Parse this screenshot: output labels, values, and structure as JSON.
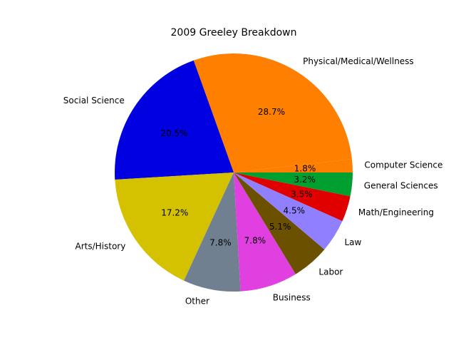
{
  "chart_data": {
    "type": "pie",
    "title": "2009 Greeley Breakdown",
    "start_angle_deg": 0,
    "direction": "counterclockwise",
    "slices": [
      {
        "label": "Computer Science",
        "value": 1.8,
        "pct_label": "1.8%",
        "color": "#ff7f00"
      },
      {
        "label": "Physical/Medical/Wellness",
        "value": 28.7,
        "pct_label": "28.7%",
        "color": "#ff7f00"
      },
      {
        "label": "Social Science",
        "value": 20.5,
        "pct_label": "20.5%",
        "color": "#0000e0"
      },
      {
        "label": "Arts/History",
        "value": 17.2,
        "pct_label": "17.2%",
        "color": "#d4c200"
      },
      {
        "label": "Other",
        "value": 7.8,
        "pct_label": "7.8%",
        "color": "#708090"
      },
      {
        "label": "Business",
        "value": 7.8,
        "pct_label": "7.8%",
        "color": "#e040e0"
      },
      {
        "label": "Labor",
        "value": 5.1,
        "pct_label": "5.1%",
        "color": "#6b5000"
      },
      {
        "label": "Law",
        "value": 4.5,
        "pct_label": "4.5%",
        "color": "#9080ff"
      },
      {
        "label": "Math/Engineering",
        "value": 3.5,
        "pct_label": "3.5%",
        "color": "#e00000"
      },
      {
        "label": "General Sciences",
        "value": 3.2,
        "pct_label": "3.2%",
        "color": "#00a030"
      }
    ]
  }
}
